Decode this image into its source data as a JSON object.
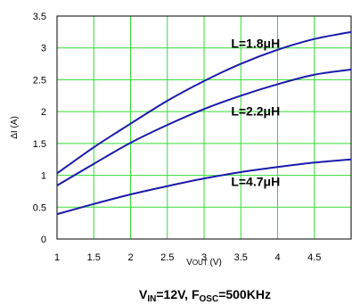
{
  "chart_data": {
    "type": "line",
    "xlabel": {
      "main": "V",
      "sub": "OUT",
      "unit": " (V)"
    },
    "ylabel": "ΔI (A)",
    "xlim": [
      1,
      5
    ],
    "ylim": [
      0,
      3.5
    ],
    "x_ticks": [
      "1",
      "1.5",
      "2",
      "2.5",
      "3",
      "3.5",
      "4",
      "4.5"
    ],
    "y_ticks": [
      "0",
      "0.5",
      "1",
      "1.5",
      "2",
      "2.5",
      "3",
      "3.5"
    ],
    "grid": true,
    "grid_color": "#33dd33",
    "line_color": "#1a1aaa",
    "x": [
      1.0,
      1.5,
      2.0,
      2.5,
      3.0,
      3.5,
      4.0,
      4.5,
      5.0
    ],
    "series": [
      {
        "name": "L=1.8μH",
        "values": [
          1.03,
          1.44,
          1.81,
          2.17,
          2.48,
          2.75,
          2.97,
          3.14,
          3.25
        ]
      },
      {
        "name": "L=2.2μH",
        "values": [
          0.84,
          1.18,
          1.51,
          1.79,
          2.04,
          2.25,
          2.43,
          2.58,
          2.66
        ]
      },
      {
        "name": "L=4.7μH",
        "values": [
          0.39,
          0.55,
          0.7,
          0.83,
          0.95,
          1.05,
          1.13,
          1.2,
          1.25
        ]
      }
    ],
    "caption": {
      "v": "V",
      "v_sub": "IN",
      "v_val": "=12V, F",
      "f_sub": "OSC",
      "f_val": "=500KHz"
    }
  }
}
